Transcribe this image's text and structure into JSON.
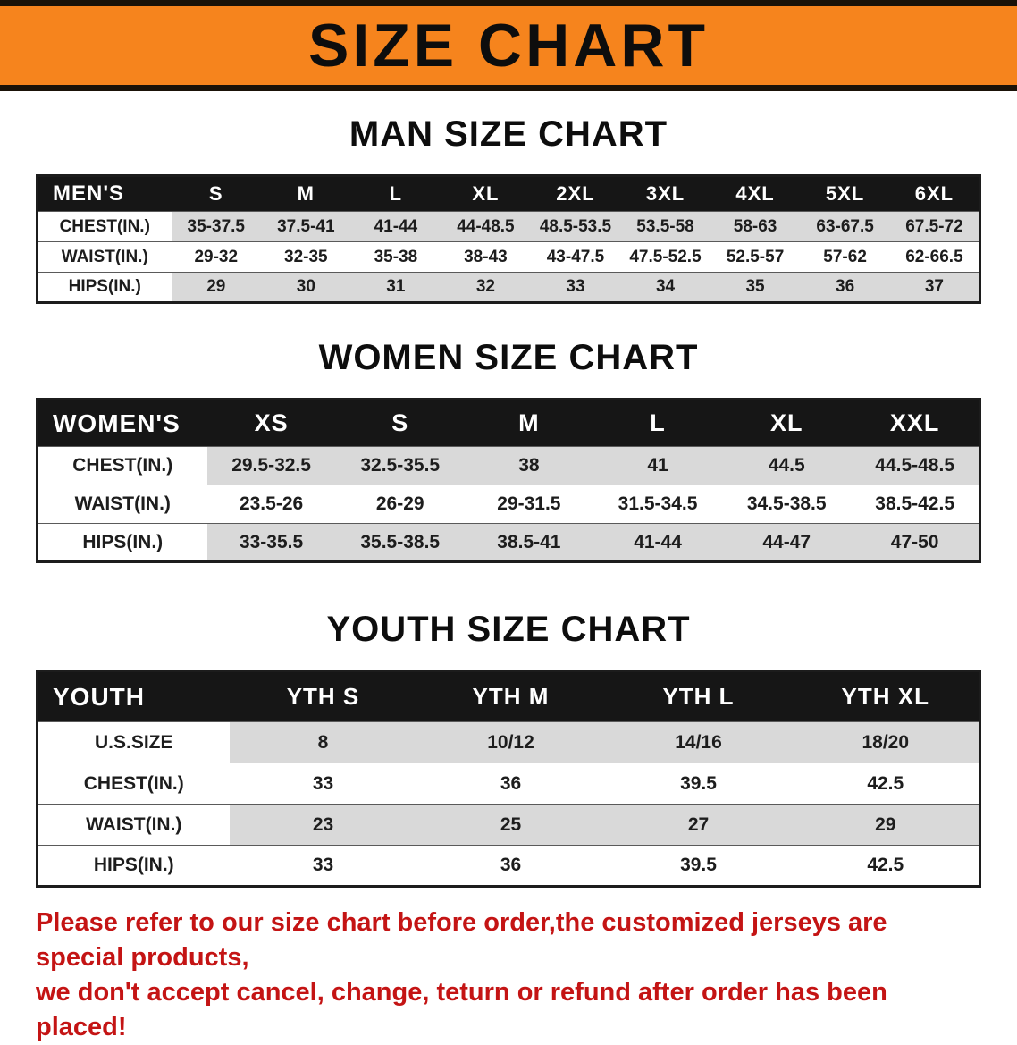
{
  "colors": {
    "banner-orange": "#f6841d",
    "banner-border": "#1a1208",
    "header-black": "#161616",
    "stripe-gray": "#d9d9d9",
    "notice-red": "#c41414"
  },
  "banner": {
    "title": "SIZE CHART"
  },
  "sections": [
    {
      "heading": "MAN SIZE CHART",
      "table": {
        "header": [
          "MEN'S",
          "S",
          "M",
          "L",
          "XL",
          "2XL",
          "3XL",
          "4XL",
          "5XL",
          "6XL"
        ],
        "rows": [
          {
            "label": "CHEST(IN.)",
            "values": [
              "35-37.5",
              "37.5-41",
              "41-44",
              "44-48.5",
              "48.5-53.5",
              "53.5-58",
              "58-63",
              "63-67.5",
              "67.5-72"
            ]
          },
          {
            "label": "WAIST(IN.)",
            "values": [
              "29-32",
              "32-35",
              "35-38",
              "38-43",
              "43-47.5",
              "47.5-52.5",
              "52.5-57",
              "57-62",
              "62-66.5"
            ]
          },
          {
            "label": "HIPS(IN.)",
            "values": [
              "29",
              "30",
              "31",
              "32",
              "33",
              "34",
              "35",
              "36",
              "37"
            ]
          }
        ]
      }
    },
    {
      "heading": "WOMEN SIZE CHART",
      "table": {
        "header": [
          "WOMEN'S",
          "XS",
          "S",
          "M",
          "L",
          "XL",
          "XXL"
        ],
        "rows": [
          {
            "label": "CHEST(IN.)",
            "values": [
              "29.5-32.5",
              "32.5-35.5",
              "38",
              "41",
              "44.5",
              "44.5-48.5"
            ]
          },
          {
            "label": "WAIST(IN.)",
            "values": [
              "23.5-26",
              "26-29",
              "29-31.5",
              "31.5-34.5",
              "34.5-38.5",
              "38.5-42.5"
            ]
          },
          {
            "label": "HIPS(IN.)",
            "values": [
              "33-35.5",
              "35.5-38.5",
              "38.5-41",
              "41-44",
              "44-47",
              "47-50"
            ]
          }
        ]
      }
    },
    {
      "heading": "YOUTH SIZE CHART",
      "table": {
        "header": [
          "YOUTH",
          "YTH S",
          "YTH M",
          "YTH L",
          "YTH XL"
        ],
        "rows": [
          {
            "label": "U.S.SIZE",
            "values": [
              "8",
              "10/12",
              "14/16",
              "18/20"
            ]
          },
          {
            "label": "CHEST(IN.)",
            "values": [
              "33",
              "36",
              "39.5",
              "42.5"
            ]
          },
          {
            "label": "WAIST(IN.)",
            "values": [
              "23",
              "25",
              "27",
              "29"
            ]
          },
          {
            "label": "HIPS(IN.)",
            "values": [
              "33",
              "36",
              "39.5",
              "42.5"
            ]
          }
        ]
      }
    }
  ],
  "footer": {
    "line1": "Please refer to our size chart before order,the customized jerseys are special products,",
    "line2": "we don't accept cancel, change, teturn or refund after order has been placed!"
  }
}
